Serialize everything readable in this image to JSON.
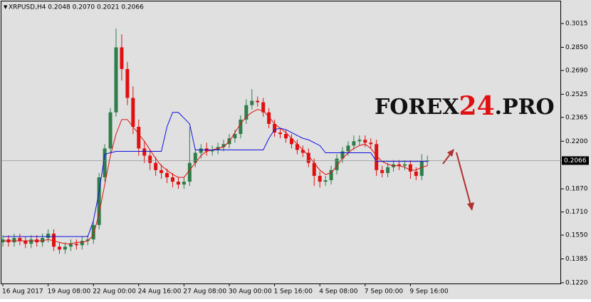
{
  "chart_data": {
    "type": "candlestick",
    "title": "XRPUSD,H4  0.2048 0.2070 0.2021 0.2066",
    "watermark": [
      "FOREX",
      "24",
      ".PRO"
    ],
    "last_price": 0.2066,
    "ylim": [
      0.1215,
      0.3168
    ],
    "yticks": [
      0.3015,
      {
        "value": 0.285,
        "label": "0.2850"
      },
      {
        "value": 0.269,
        "label": "0.2690"
      },
      0.2525,
      0.2365,
      {
        "value": 0.22,
        "label": "0.2200"
      },
      {
        "value": 0.187,
        "label": "0.1870"
      },
      {
        "value": 0.171,
        "label": "0.1710"
      },
      {
        "value": 0.155,
        "label": "0.1550"
      },
      0.1385,
      {
        "value": 0.122,
        "label": "0.1220"
      }
    ],
    "categories": [
      "16 Aug 2017",
      null,
      null,
      null,
      null,
      null,
      null,
      null,
      "19 Aug 08:00",
      null,
      null,
      null,
      null,
      null,
      null,
      null,
      "22 Aug 00:00",
      null,
      null,
      null,
      null,
      null,
      null,
      null,
      "24 Aug 16:00",
      null,
      null,
      null,
      null,
      null,
      null,
      null,
      "27 Aug 08:00",
      null,
      null,
      null,
      null,
      null,
      null,
      null,
      "30 Aug 00:00",
      null,
      null,
      null,
      null,
      null,
      null,
      null,
      "1 Sep 16:00",
      null,
      null,
      null,
      null,
      null,
      null,
      null,
      "4 Sep 08:00",
      null,
      null,
      null,
      null,
      null,
      null,
      null,
      "7 Sep 00:00",
      null,
      null,
      null,
      null,
      null,
      null,
      null,
      "9 Sep 16:00",
      null,
      null,
      null
    ],
    "bull_color": "#2e7d4a",
    "bear_color": "#e01010",
    "open": [
      0.15,
      0.152,
      0.15,
      0.153,
      0.151,
      0.149,
      0.152,
      0.15,
      0.153,
      0.156,
      0.147,
      0.145,
      0.147,
      0.149,
      0.148,
      0.151,
      0.152,
      0.162,
      0.195,
      0.215,
      0.24,
      0.285,
      0.27,
      0.25,
      0.23,
      0.215,
      0.21,
      0.205,
      0.2,
      0.198,
      0.195,
      0.192,
      0.19,
      0.192,
      0.205,
      0.212,
      0.215,
      0.213,
      0.214,
      0.216,
      0.218,
      0.222,
      0.225,
      0.235,
      0.245,
      0.248,
      0.247,
      0.24,
      0.232,
      0.226,
      0.225,
      0.222,
      0.218,
      0.214,
      0.212,
      0.205,
      0.196,
      0.192,
      0.193,
      0.2,
      0.208,
      0.213,
      0.217,
      0.22,
      0.221,
      0.219,
      0.218,
      0.2,
      0.198,
      0.202,
      0.204,
      0.203,
      0.204,
      0.199,
      0.196,
      0.206
    ],
    "high": [
      0.155,
      0.155,
      0.156,
      0.156,
      0.154,
      0.155,
      0.155,
      0.156,
      0.159,
      0.159,
      0.15,
      0.15,
      0.152,
      0.152,
      0.154,
      0.155,
      0.165,
      0.198,
      0.218,
      0.243,
      0.298,
      0.294,
      0.275,
      0.258,
      0.235,
      0.22,
      0.214,
      0.209,
      0.204,
      0.201,
      0.198,
      0.195,
      0.195,
      0.23,
      0.215,
      0.218,
      0.219,
      0.217,
      0.219,
      0.221,
      0.225,
      0.228,
      0.238,
      0.249,
      0.256,
      0.251,
      0.25,
      0.243,
      0.235,
      0.229,
      0.228,
      0.225,
      0.221,
      0.217,
      0.215,
      0.208,
      0.199,
      0.196,
      0.203,
      0.211,
      0.216,
      0.22,
      0.224,
      0.224,
      0.224,
      0.222,
      0.221,
      0.203,
      0.205,
      0.207,
      0.207,
      0.207,
      0.207,
      0.202,
      0.211,
      0.21
    ],
    "low": [
      0.147,
      0.147,
      0.147,
      0.148,
      0.146,
      0.146,
      0.147,
      0.147,
      0.15,
      0.144,
      0.142,
      0.142,
      0.144,
      0.145,
      0.145,
      0.148,
      0.149,
      0.159,
      0.192,
      0.212,
      0.237,
      0.262,
      0.245,
      0.225,
      0.21,
      0.205,
      0.2,
      0.196,
      0.194,
      0.191,
      0.188,
      0.187,
      0.187,
      0.189,
      0.202,
      0.208,
      0.21,
      0.21,
      0.211,
      0.213,
      0.215,
      0.219,
      0.222,
      0.232,
      0.242,
      0.244,
      0.237,
      0.229,
      0.223,
      0.222,
      0.219,
      0.215,
      0.211,
      0.209,
      0.202,
      0.189,
      0.188,
      0.189,
      0.19,
      0.197,
      0.205,
      0.21,
      0.214,
      0.217,
      0.216,
      0.215,
      0.196,
      0.195,
      0.195,
      0.199,
      0.2,
      0.2,
      0.194,
      0.193,
      0.193,
      0.203
    ],
    "close": [
      0.152,
      0.15,
      0.153,
      0.151,
      0.149,
      0.152,
      0.15,
      0.153,
      0.156,
      0.147,
      0.145,
      0.147,
      0.149,
      0.148,
      0.151,
      0.152,
      0.162,
      0.195,
      0.215,
      0.24,
      0.285,
      0.27,
      0.25,
      0.23,
      0.215,
      0.21,
      0.205,
      0.2,
      0.198,
      0.195,
      0.192,
      0.19,
      0.192,
      0.205,
      0.212,
      0.215,
      0.213,
      0.214,
      0.216,
      0.218,
      0.222,
      0.225,
      0.235,
      0.245,
      0.248,
      0.247,
      0.24,
      0.232,
      0.226,
      0.225,
      0.222,
      0.218,
      0.214,
      0.212,
      0.205,
      0.196,
      0.192,
      0.193,
      0.2,
      0.208,
      0.213,
      0.217,
      0.22,
      0.221,
      0.219,
      0.218,
      0.2,
      0.198,
      0.202,
      0.204,
      0.203,
      0.204,
      0.199,
      0.196,
      0.206,
      0.2066
    ],
    "series": [
      {
        "color": "#e01010",
        "values": [
          0.151,
          0.151,
          0.151,
          0.151,
          0.151,
          0.151,
          0.151,
          0.151,
          0.152,
          0.151,
          0.15,
          0.149,
          0.149,
          0.15,
          0.15,
          0.151,
          0.155,
          0.17,
          0.19,
          0.21,
          0.225,
          0.235,
          0.235,
          0.23,
          0.225,
          0.22,
          0.214,
          0.208,
          0.203,
          0.2,
          0.197,
          0.195,
          0.195,
          0.2,
          0.205,
          0.21,
          0.213,
          0.214,
          0.215,
          0.216,
          0.22,
          0.226,
          0.232,
          0.237,
          0.24,
          0.242,
          0.241,
          0.237,
          0.232,
          0.229,
          0.226,
          0.222,
          0.218,
          0.214,
          0.21,
          0.205,
          0.2,
          0.197,
          0.198,
          0.203,
          0.208,
          0.212,
          0.215,
          0.217,
          0.218,
          0.215,
          0.21,
          0.206,
          0.204,
          0.203,
          0.203,
          0.202,
          0.2,
          0.2,
          0.202,
          0.203
        ]
      },
      {
        "color": "#1010e0",
        "values": [
          0.154,
          0.154,
          0.154,
          0.154,
          0.154,
          0.154,
          0.154,
          0.154,
          0.154,
          0.154,
          0.154,
          0.154,
          0.154,
          0.154,
          0.154,
          0.154,
          0.165,
          0.185,
          0.211,
          0.212,
          0.213,
          0.213,
          0.213,
          0.213,
          0.213,
          0.213,
          0.213,
          0.213,
          0.213,
          0.23,
          0.24,
          0.24,
          0.236,
          0.232,
          0.214,
          0.214,
          0.214,
          0.214,
          0.214,
          0.214,
          0.214,
          0.214,
          0.214,
          0.214,
          0.214,
          0.214,
          0.214,
          0.222,
          0.228,
          0.229,
          0.228,
          0.226,
          0.224,
          0.222,
          0.221,
          0.219,
          0.217,
          0.212,
          0.212,
          0.212,
          0.212,
          0.212,
          0.212,
          0.212,
          0.212,
          0.212,
          0.206,
          0.206,
          0.206,
          0.206,
          0.206,
          0.206,
          0.206,
          0.206,
          0.206,
          0.206
        ]
      }
    ]
  }
}
